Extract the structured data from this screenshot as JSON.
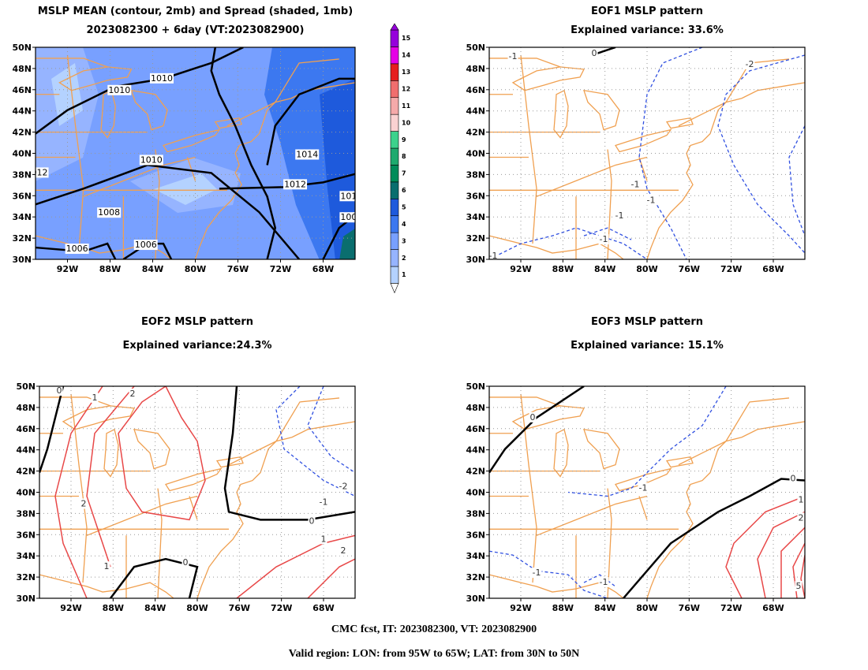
{
  "panels": [
    {
      "title": "MSLP MEAN (contour, 2mb) and Spread (shaded, 1mb)",
      "subtitle": "2023082300 + 6day (VT:2023082900)",
      "xticks": [
        "92W",
        "88W",
        "84W",
        "80W",
        "76W",
        "72W",
        "68W"
      ],
      "yticks": [
        "30N",
        "32N",
        "34N",
        "36N",
        "38N",
        "40N",
        "42N",
        "44N",
        "46N",
        "48N",
        "50N"
      ],
      "contour_labels": [
        "1010",
        "1010",
        "1014",
        "1010",
        "1012",
        "1008",
        "1006",
        "1006",
        "012",
        "101",
        "100"
      ]
    },
    {
      "title": "EOF1 MSLP pattern",
      "subtitle": "Explained variance: 33.6%",
      "xticks": [
        "92W",
        "88W",
        "84W",
        "80W",
        "76W",
        "72W",
        "68W"
      ],
      "yticks": [
        "30N",
        "32N",
        "34N",
        "36N",
        "38N",
        "40N",
        "42N",
        "44N",
        "46N",
        "48N",
        "50N"
      ],
      "contour_labels": [
        "0",
        "-1",
        "-2",
        "-1",
        "-1",
        "-1",
        "-1",
        "-1"
      ]
    },
    {
      "title": "EOF2 MSLP pattern",
      "subtitle": "Explained variance:24.3%",
      "xticks": [
        "92W",
        "88W",
        "84W",
        "80W",
        "76W",
        "72W",
        "68W"
      ],
      "yticks": [
        "30N",
        "32N",
        "34N",
        "36N",
        "38N",
        "40N",
        "42N",
        "44N",
        "46N",
        "48N",
        "50N"
      ],
      "contour_labels": [
        "0",
        "1",
        "2",
        "2",
        "1",
        "0",
        "0",
        "-1",
        "-2",
        "1",
        "2"
      ]
    },
    {
      "title": "EOF3 MSLP pattern",
      "subtitle": "Explained variance: 15.1%",
      "xticks": [
        "92W",
        "88W",
        "84W",
        "80W",
        "76W",
        "72W",
        "68W"
      ],
      "yticks": [
        "30N",
        "32N",
        "34N",
        "36N",
        "38N",
        "40N",
        "42N",
        "44N",
        "46N",
        "48N",
        "50N"
      ],
      "contour_labels": [
        "0",
        "0",
        "-1",
        "-1",
        "-1",
        "1",
        "2",
        "5"
      ]
    }
  ],
  "colorbar": {
    "ticks": [
      1,
      2,
      3,
      4,
      5,
      6,
      7,
      8,
      9,
      10,
      11,
      12,
      13,
      14,
      15
    ],
    "colors": [
      "#b4d2ff",
      "#96b4ff",
      "#78a0ff",
      "#3c78f0",
      "#1e5adc",
      "#0a6e6e",
      "#008c5a",
      "#1eaa6e",
      "#3cd28c",
      "#fad2d2",
      "#f5aaaa",
      "#f06e6e",
      "#e61e1e",
      "#e600e6",
      "#9600dc"
    ]
  },
  "footer": [
    "CMC fcst, IT: 2023082300, VT: 2023082900",
    "Valid region: LON: from 95W to 65W; LAT: from 30N to 50N"
  ]
}
